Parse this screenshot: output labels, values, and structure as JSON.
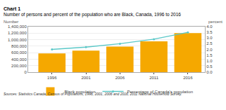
{
  "chart_data": {
    "type": "bar",
    "title": "Chart 1",
    "subtitle": "Number of persons and percent of the population who are Black, Canada, 1996 to 2016",
    "x": [
      1996,
      2001,
      2006,
      2011,
      2016
    ],
    "series": [
      {
        "name": "Black population",
        "type": "bar",
        "color": "#F5A800",
        "values": [
          573860,
          662720,
          783800,
          945665,
          1198545
        ]
      },
      {
        "name": "Percentage of Canada's population",
        "type": "line",
        "color": "#5BC8C8",
        "marker": "circle",
        "axis": "y2",
        "values": [
          2.0,
          2.2,
          2.5,
          2.9,
          3.5
        ]
      }
    ],
    "xlim": [
      1992.5,
      2018.5
    ],
    "xticks": [
      1996,
      2001,
      2006,
      2011,
      2016
    ],
    "ylim": [
      0,
      1400000
    ],
    "yticks": [
      0,
      {
        "value": 200000,
        "label": "200,000"
      },
      {
        "value": 400000,
        "label": "400,000"
      },
      {
        "value": 600000,
        "label": "600,000"
      },
      {
        "value": 800000,
        "label": "800,000"
      },
      {
        "value": 1000000,
        "label": "1,000,000"
      },
      {
        "value": 1200000,
        "label": "1,200,000"
      },
      {
        "value": 1400000,
        "label": "1,400,000"
      }
    ],
    "y2lim": [
      0.0,
      4.0
    ],
    "y2ticks": [
      {
        "value": 0.0,
        "label": "0.0"
      },
      0.5,
      {
        "value": 1.0,
        "label": "1.0"
      },
      1.5,
      {
        "value": 2.0,
        "label": "2.0"
      },
      2.5,
      {
        "value": 3.0,
        "label": "3.0"
      },
      3.5,
      {
        "value": 4.0,
        "label": "4.0"
      }
    ],
    "ylabel": "Number",
    "y2label": "percent",
    "source": "Sources: Statistics Canada, Census of Populations, 1996, 2001, 2006 and 2016; 2011 National Household Survey.",
    "grid": true,
    "legend": "bottom"
  }
}
